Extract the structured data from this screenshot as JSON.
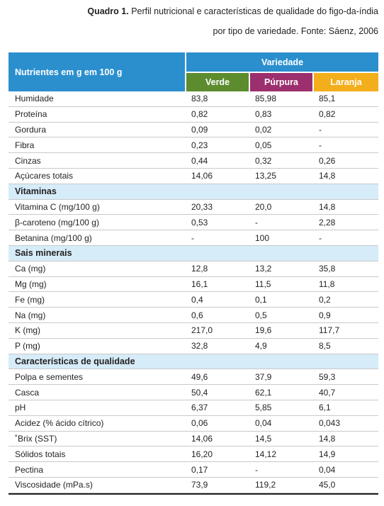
{
  "caption": {
    "label": "Quadro 1.",
    "line1": "Perfil nutricional e características de qualidade do figo-da-índia",
    "line2": "por tipo de variedade. Fonte: Sáenz, 2006"
  },
  "header": {
    "main": "Nutrientes em g em 100 g",
    "variety": "Variedade",
    "columns": [
      "Verde",
      "Púrpura",
      "Laranja"
    ]
  },
  "colors": {
    "header_blue": "#2b8fce",
    "verde": "#5c8c2e",
    "purpura": "#9c2f6d",
    "laranja": "#f3ae1b",
    "section_bg": "#d6ecf8"
  },
  "rows": [
    {
      "name": "Humidade",
      "values": [
        "83,8",
        "85,98",
        "85,1"
      ]
    },
    {
      "name": "Proteína",
      "values": [
        "0,82",
        "0,83",
        "0,82"
      ]
    },
    {
      "name": "Gordura",
      "values": [
        "0,09",
        "0,02",
        "-"
      ]
    },
    {
      "name": "Fibra",
      "values": [
        "0,23",
        "0,05",
        "-"
      ]
    },
    {
      "name": "Cinzas",
      "values": [
        "0,44",
        "0,32",
        "0,26"
      ]
    },
    {
      "name": "Açúcares totais",
      "values": [
        "14,06",
        "13,25",
        "14,8"
      ]
    },
    {
      "section": "Vitaminas"
    },
    {
      "name": "Vitamina C (mg/100 g)",
      "values": [
        "20,33",
        "20,0",
        "14,8"
      ]
    },
    {
      "name": "β-caroteno (mg/100 g)",
      "values": [
        "0,53",
        "-",
        "2,28"
      ]
    },
    {
      "name": "Betanina (mg/100 g)",
      "values": [
        "-",
        "100",
        "-"
      ]
    },
    {
      "section": "Sais minerais"
    },
    {
      "name": "Ca (mg)",
      "values": [
        "12,8",
        "13,2",
        "35,8"
      ]
    },
    {
      "name": "Mg (mg)",
      "values": [
        "16,1",
        "11,5",
        "11,8"
      ]
    },
    {
      "name": "Fe (mg)",
      "values": [
        "0,4",
        "0,1",
        "0,2"
      ]
    },
    {
      "name": "Na (mg)",
      "values": [
        "0,6",
        "0,5",
        "0,9"
      ]
    },
    {
      "name": "K (mg)",
      "values": [
        "217,0",
        "19,6",
        "117,7"
      ]
    },
    {
      "name": "P (mg)",
      "values": [
        "32,8",
        "4,9",
        "8,5"
      ]
    },
    {
      "section": "Características de qualidade"
    },
    {
      "name": "Polpa e sementes",
      "values": [
        "49,6",
        "37,9",
        "59,3"
      ]
    },
    {
      "name": "Casca",
      "values": [
        "50,4",
        "62,1",
        "40,7"
      ]
    },
    {
      "name": "pH",
      "values": [
        "6,37",
        "5,85",
        "6,1"
      ]
    },
    {
      "name": "Acidez (% ácido cítrico)",
      "values": [
        "0,06",
        "0,04",
        "0,043"
      ]
    },
    {
      "name": "˚Brix (SST)",
      "values": [
        "14,06",
        "14,5",
        "14,8"
      ]
    },
    {
      "name": "Sólidos totais",
      "values": [
        "16,20",
        "14,12",
        "14,9"
      ]
    },
    {
      "name": "Pectina",
      "values": [
        "0,17",
        "-",
        "0,04"
      ]
    },
    {
      "name": "Viscosidade (mPa.s)",
      "values": [
        "73,9",
        "119,2",
        "45,0"
      ]
    }
  ]
}
